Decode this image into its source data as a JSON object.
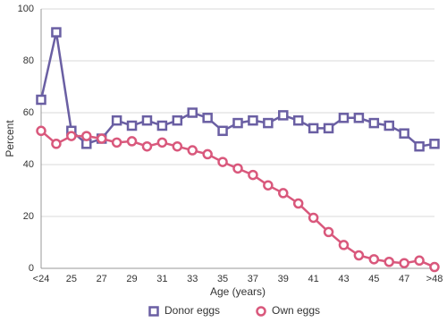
{
  "chart_data": {
    "type": "line",
    "x_label": "Age (years)",
    "y_label": "Percent",
    "categories": [
      "<24",
      null,
      "25",
      null,
      "27",
      null,
      "29",
      null,
      "31",
      null,
      "33",
      null,
      "35",
      null,
      "37",
      null,
      "39",
      null,
      "41",
      null,
      "43",
      null,
      "45",
      null,
      "47",
      null,
      ">48"
    ],
    "series": [
      {
        "name": "Donor eggs",
        "color": "#6a5fa3",
        "marker": "square",
        "values": [
          65,
          91,
          53,
          48,
          50,
          57,
          55,
          57,
          55,
          57,
          60,
          58,
          53,
          56,
          57,
          56,
          59,
          57,
          54,
          54,
          58,
          58,
          56,
          55,
          52,
          47,
          48
        ]
      },
      {
        "name": "Own eggs",
        "color": "#d9587c",
        "marker": "circle",
        "values": [
          53,
          48,
          51,
          51,
          50,
          48.5,
          49,
          47,
          48.5,
          47,
          45.5,
          44,
          41,
          38.5,
          36,
          32,
          29,
          25,
          19.5,
          14,
          9,
          5,
          3.5,
          2.5,
          2,
          3,
          0.5
        ]
      }
    ],
    "ylim": [
      0,
      100
    ],
    "yticks": [
      0,
      20,
      40,
      60,
      80,
      100
    ],
    "grid": true,
    "legend": "bottom"
  }
}
